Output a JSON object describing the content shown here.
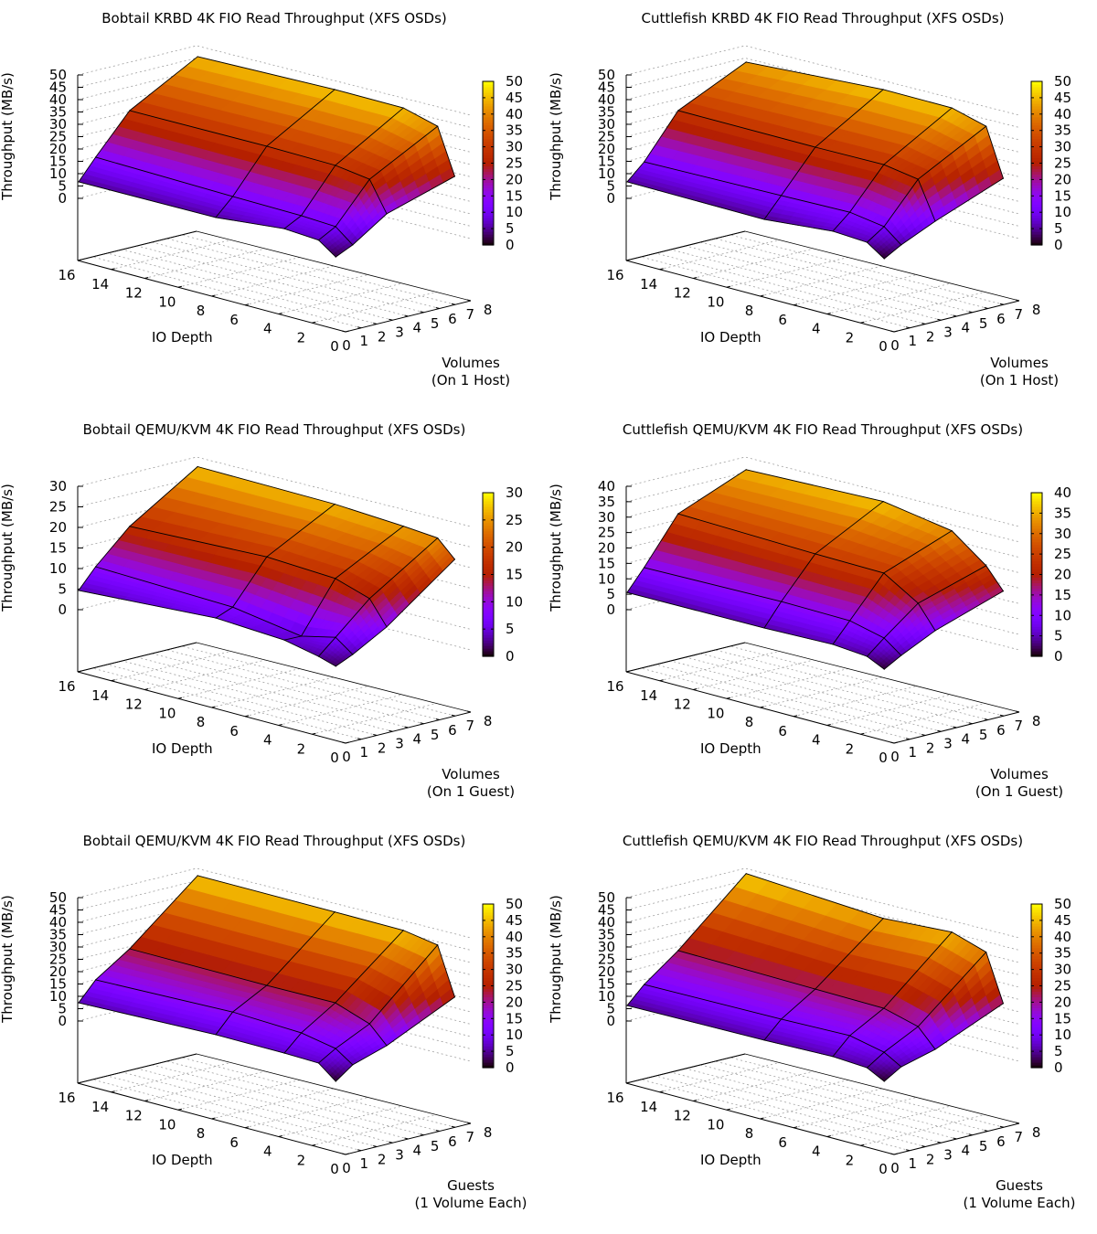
{
  "chart_data": [
    {
      "type": "surface3d",
      "title": "Bobtail KRBD 4K FIO Read Throughput (XFS OSDs)",
      "xlabel": "IO Depth",
      "ylabel": "Volumes\n(On 1 Host)",
      "zlabel": "Throughput (MB/s)",
      "x_ticks": [
        "16",
        "14",
        "12",
        "10",
        "8",
        "6",
        "4",
        "2",
        "0"
      ],
      "y_ticks": [
        "0",
        "1",
        "2",
        "3",
        "4",
        "5",
        "6",
        "7",
        "8"
      ],
      "z_ticks": [
        "0",
        "5",
        "10",
        "15",
        "20",
        "25",
        "30",
        "35",
        "40",
        "45",
        "50"
      ],
      "cb_ticks": [
        "0",
        "5",
        "10",
        "15",
        "20",
        "25",
        "30",
        "35",
        "40",
        "45",
        "50"
      ],
      "zlim": [
        0,
        50
      ],
      "io_depth": [
        16,
        8,
        4,
        2,
        1
      ],
      "volumes": [
        1,
        2,
        4,
        8
      ],
      "values": [
        [
          5.2,
          5.3,
          8.0,
          7.0,
          2.0
        ],
        [
          13.6,
          12.2,
          11.7,
          10.9,
          5.3
        ],
        [
          29.3,
          29.4,
          28.9,
          26.9,
          14.7
        ],
        [
          44.8,
          46.0,
          45.8,
          42.0,
          23.5
        ]
      ],
      "palette": "rgbformulae 7,5,15"
    },
    {
      "type": "surface3d",
      "title": "Cuttlefish KRBD 4K FIO Read Throughput (XFS OSDs)",
      "xlabel": "IO Depth",
      "ylabel": "Volumes\n(On 1 Host)",
      "zlabel": "Throughput (MB/s)",
      "x_ticks": [
        "16",
        "14",
        "12",
        "10",
        "8",
        "6",
        "4",
        "2",
        "0"
      ],
      "y_ticks": [
        "0",
        "1",
        "2",
        "3",
        "4",
        "5",
        "6",
        "7",
        "8"
      ],
      "z_ticks": [
        "0",
        "5",
        "10",
        "15",
        "20",
        "25",
        "30",
        "35",
        "40",
        "45",
        "50"
      ],
      "cb_ticks": [
        "0",
        "5",
        "10",
        "15",
        "20",
        "25",
        "30",
        "35",
        "40",
        "45",
        "50"
      ],
      "zlim": [
        0,
        50
      ],
      "io_depth": [
        16,
        8,
        4,
        2,
        1
      ],
      "volumes": [
        1,
        2,
        4,
        8
      ],
      "values": [
        [
          5.2,
          4.5,
          7.0,
          6.1,
          1.3
        ],
        [
          11.7,
          12.6,
          13.1,
          10.9,
          5.3
        ],
        [
          29.3,
          29.0,
          29.2,
          26.9,
          11.7
        ],
        [
          42.6,
          46.0,
          45.8,
          42.0,
          22.7
        ]
      ],
      "palette": "rgbformulae 7,5,15"
    },
    {
      "type": "surface3d",
      "title": "Bobtail QEMU/KVM 4K FIO Read Throughput (XFS OSDs)",
      "xlabel": "IO Depth",
      "ylabel": "Volumes\n(On 1 Guest)",
      "zlabel": "Throughput (MB/s)",
      "x_ticks": [
        "16",
        "14",
        "12",
        "10",
        "8",
        "6",
        "4",
        "2",
        "0"
      ],
      "y_ticks": [
        "0",
        "1",
        "2",
        "3",
        "4",
        "5",
        "6",
        "7",
        "8"
      ],
      "z_ticks": [
        "0",
        "5",
        "10",
        "15",
        "20",
        "25",
        "30"
      ],
      "cb_ticks": [
        "0",
        "5",
        "10",
        "15",
        "20",
        "25",
        "30"
      ],
      "zlim": [
        0,
        30
      ],
      "io_depth": [
        16,
        8,
        4,
        2,
        1
      ],
      "volumes": [
        1,
        2,
        4,
        8
      ],
      "values": [
        [
          3.8,
          5.8,
          4.8,
          3.0,
          1.7
        ],
        [
          8.6,
          7.5,
          4.8,
          6.7,
          3.6
        ],
        [
          16.5,
          17.8,
          16.9,
          14.2,
          8.4
        ],
        [
          27.2,
          26.8,
          25.8,
          25.1,
          21.0
        ]
      ],
      "palette": "rgbformulae 7,5,15"
    },
    {
      "type": "surface3d",
      "title": "Cuttlefish QEMU/KVM 4K FIO Read Throughput (XFS OSDs)",
      "xlabel": "IO Depth",
      "ylabel": "Volumes\n(On 1 Guest)",
      "zlabel": "Throughput (MB/s)",
      "x_ticks": [
        "16",
        "14",
        "12",
        "10",
        "8",
        "6",
        "4",
        "2",
        "0"
      ],
      "y_ticks": [
        "0",
        "1",
        "2",
        "3",
        "4",
        "5",
        "6",
        "7",
        "8"
      ],
      "z_ticks": [
        "0",
        "5",
        "10",
        "15",
        "20",
        "25",
        "30",
        "35",
        "40"
      ],
      "cb_ticks": [
        "0",
        "5",
        "10",
        "15",
        "20",
        "25",
        "30",
        "35",
        "40"
      ],
      "zlim": [
        0,
        40
      ],
      "io_depth": [
        16,
        8,
        4,
        2,
        1
      ],
      "volumes": [
        1,
        2,
        4,
        8
      ],
      "values": [
        [
          4.4,
          4.5,
          5.0,
          4.0,
          1.3
        ],
        [
          11.2,
          11.8,
          11.4,
          8.7,
          4.5
        ],
        [
          26.1,
          24.7,
          24.3,
          17.4,
          10.0
        ],
        [
          35.3,
          36.6,
          32.9,
          24.5,
          17.7
        ]
      ],
      "palette": "rgbformulae 7,5,15"
    },
    {
      "type": "surface3d",
      "title": "Bobtail QEMU/KVM 4K FIO Read Throughput (XFS OSDs)",
      "xlabel": "IO Depth",
      "ylabel": "Guests\n(1 Volume Each)",
      "zlabel": "Throughput (MB/s)",
      "x_ticks": [
        "16",
        "14",
        "12",
        "10",
        "8",
        "6",
        "4",
        "2",
        "0"
      ],
      "y_ticks": [
        "0",
        "1",
        "2",
        "3",
        "4",
        "5",
        "6",
        "7",
        "8"
      ],
      "z_ticks": [
        "0",
        "5",
        "10",
        "15",
        "20",
        "25",
        "30",
        "35",
        "40",
        "45",
        "50"
      ],
      "cb_ticks": [
        "0",
        "5",
        "10",
        "15",
        "20",
        "25",
        "30",
        "35",
        "40",
        "45",
        "50"
      ],
      "zlim": [
        0,
        50
      ],
      "io_depth": [
        16,
        8,
        4,
        2,
        1
      ],
      "volumes": [
        1,
        2,
        4,
        8
      ],
      "values": [
        [
          5.9,
          7.5,
          7.3,
          6.9,
          1.3
        ],
        [
          13.6,
          15.1,
          13.9,
          11.2,
          6.4
        ],
        [
          23.0,
          22.7,
          22.9,
          18.0,
          11.0
        ],
        [
          46.3,
          46.1,
          45.9,
          43.6,
          24.3
        ]
      ],
      "palette": "rgbformulae 7,5,15"
    },
    {
      "type": "surface3d",
      "title": "Cuttlefish QEMU/KVM 4K FIO Read Throughput (XFS OSDs)",
      "xlabel": "IO Depth",
      "ylabel": "Guests\n(1 Volume Each)",
      "zlabel": "Throughput (MB/s)",
      "x_ticks": [
        "16",
        "14",
        "12",
        "10",
        "8",
        "6",
        "4",
        "2",
        "0"
      ],
      "y_ticks": [
        "0",
        "1",
        "2",
        "3",
        "4",
        "5",
        "6",
        "7",
        "8"
      ],
      "z_ticks": [
        "0",
        "5",
        "10",
        "15",
        "20",
        "25",
        "30",
        "35",
        "40",
        "45",
        "50"
      ],
      "cb_ticks": [
        "0",
        "5",
        "10",
        "15",
        "20",
        "25",
        "30",
        "35",
        "40",
        "45",
        "50"
      ],
      "zlim": [
        0,
        50
      ],
      "io_depth": [
        16,
        8,
        4,
        2,
        1
      ],
      "volumes": [
        1,
        2,
        4,
        8
      ],
      "values": [
        [
          4.8,
          5.3,
          5.9,
          5.0,
          1.3
        ],
        [
          11.7,
          12.2,
          12.8,
          9.7,
          5.6
        ],
        [
          22.3,
          21.2,
          20.7,
          16.9,
          9.5
        ],
        [
          47.1,
          43.5,
          45.2,
          40.7,
          21.7
        ]
      ],
      "palette": "rgbformulae 7,5,15"
    }
  ]
}
